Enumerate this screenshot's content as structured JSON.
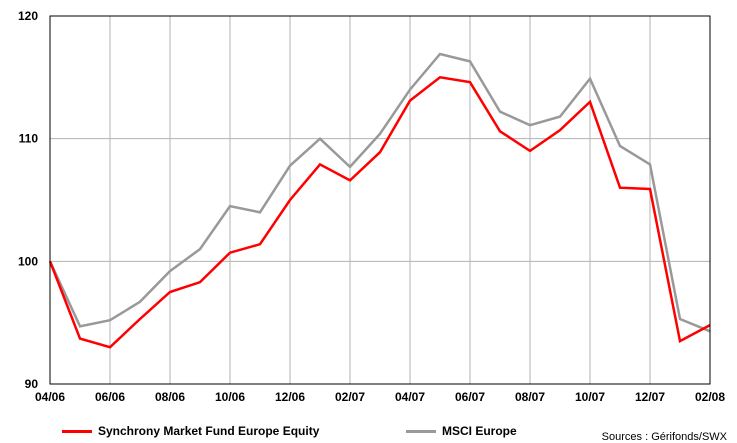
{
  "chart_data": {
    "type": "line",
    "title": "",
    "xlabel": "",
    "ylabel": "",
    "ylim": [
      90,
      120
    ],
    "y_ticks": [
      90,
      100,
      110,
      120
    ],
    "x": [
      "04/06",
      "05/06",
      "06/06",
      "07/06",
      "08/06",
      "09/06",
      "10/06",
      "11/06",
      "12/06",
      "01/07",
      "02/07",
      "03/07",
      "04/07",
      "05/07",
      "06/07",
      "07/07",
      "08/07",
      "09/07",
      "10/07",
      "11/07",
      "12/07",
      "01/08",
      "02/08"
    ],
    "x_tick_labels": [
      "04/06",
      "06/06",
      "08/06",
      "10/06",
      "12/06",
      "02/07",
      "04/07",
      "06/07",
      "08/07",
      "10/07",
      "12/07",
      "02/08"
    ],
    "grid": true,
    "legend_placement": "bottom",
    "series": [
      {
        "name": "Synchrony Market Fund Europe Equity",
        "color": "#ff0000",
        "values": [
          100,
          93.7,
          93.0,
          95.3,
          97.5,
          98.3,
          100.7,
          101.4,
          105.0,
          107.9,
          106.6,
          108.9,
          113.1,
          115.0,
          114.6,
          110.6,
          109.0,
          110.7,
          113.0,
          106.0,
          105.9,
          93.5,
          94.8
        ]
      },
      {
        "name": "MSCI Europe",
        "color": "#999999",
        "values": [
          100,
          94.7,
          95.2,
          96.7,
          99.2,
          101.0,
          104.5,
          104.0,
          107.8,
          110.0,
          107.7,
          110.4,
          114.0,
          116.9,
          116.3,
          112.2,
          111.1,
          111.8,
          114.9,
          109.4,
          107.9,
          95.3,
          94.3
        ]
      }
    ]
  },
  "source_text": "Sources : Gérifonds/SWX"
}
